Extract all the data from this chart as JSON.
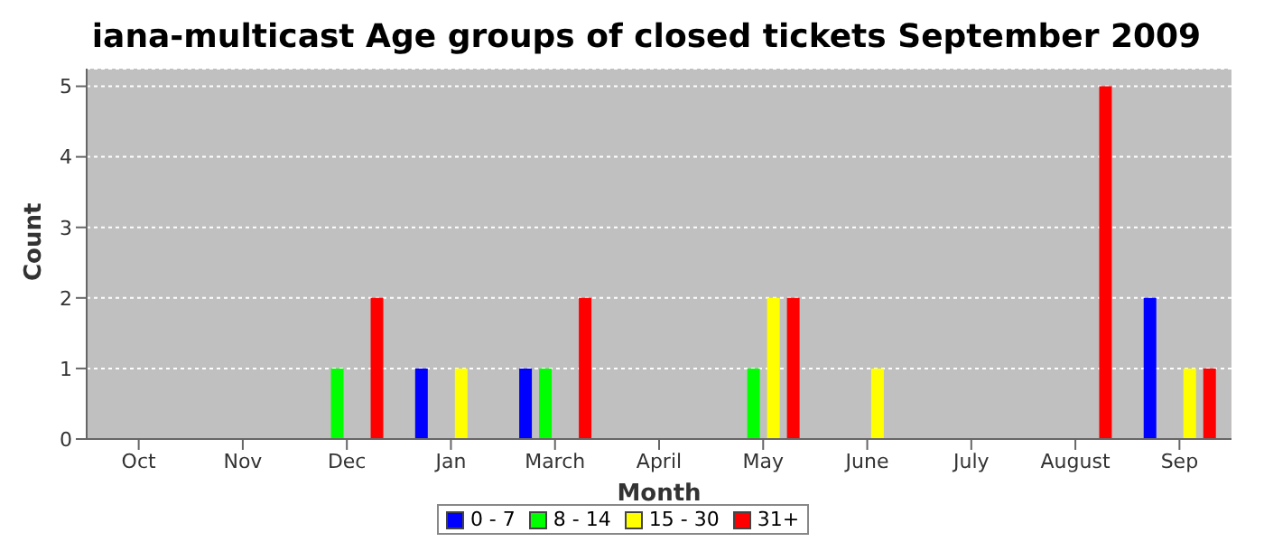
{
  "chart_data": {
    "type": "bar",
    "title": "iana-multicast Age groups of closed tickets September 2009",
    "xlabel": "Month",
    "ylabel": "Count",
    "categories": [
      "Oct",
      "Nov",
      "Dec",
      "Jan",
      "March",
      "April",
      "May",
      "June",
      "July",
      "August",
      "Sep"
    ],
    "series": [
      {
        "name": "0 - 7",
        "color": "#0000ff",
        "values": [
          0,
          0,
          0,
          1,
          1,
          0,
          0,
          0,
          0,
          0,
          2
        ]
      },
      {
        "name": "8 - 14",
        "color": "#00ff00",
        "values": [
          0,
          0,
          1,
          0,
          1,
          0,
          1,
          0,
          0,
          0,
          0
        ]
      },
      {
        "name": "15 - 30",
        "color": "#ffff00",
        "values": [
          0,
          0,
          0,
          1,
          0,
          0,
          2,
          1,
          0,
          0,
          1
        ]
      },
      {
        "name": "31+",
        "color": "#ff0000",
        "values": [
          0,
          0,
          2,
          0,
          2,
          0,
          2,
          0,
          0,
          5,
          1
        ]
      }
    ],
    "ylim": [
      0,
      5.25
    ],
    "yticks": [
      0,
      1,
      2,
      3,
      4,
      5
    ],
    "grid": "y",
    "legend": "bottom"
  }
}
